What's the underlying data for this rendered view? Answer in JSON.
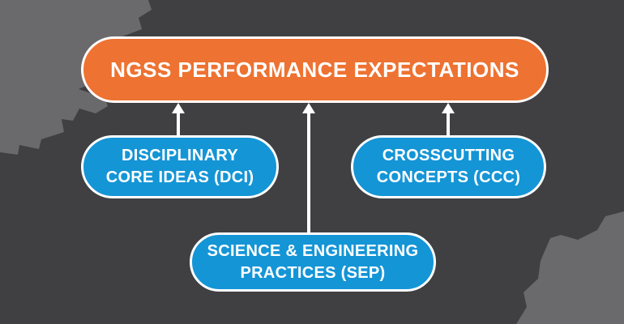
{
  "diagram": {
    "root_node": {
      "id": "ngss-pe",
      "label": "NGSS PERFORMANCE EXPECTATIONS"
    },
    "child_nodes": [
      {
        "id": "dci",
        "label_line1": "DISCIPLINARY",
        "label_line2": "CORE IDEAS (DCI)"
      },
      {
        "id": "ccc",
        "label_line1": "CROSSCUTTING",
        "label_line2": "CONCEPTS (CCC)"
      },
      {
        "id": "sep",
        "label_line1": "SCIENCE & ENGINEERING",
        "label_line2": "PRACTICES (SEP)"
      }
    ],
    "arrows": [
      {
        "from": "dci",
        "to": "ngss-pe",
        "direction": "up"
      },
      {
        "from": "sep",
        "to": "ngss-pe",
        "direction": "up"
      },
      {
        "from": "ccc",
        "to": "ngss-pe",
        "direction": "up"
      }
    ],
    "colors": {
      "background": "#404042",
      "blob": "#6A6A6C",
      "root_fill": "#EE7231",
      "child_fill": "#1495D6",
      "node_border": "#FFFFFF",
      "arrow": "#FFFFFF",
      "text": "#FFFFFF"
    }
  }
}
